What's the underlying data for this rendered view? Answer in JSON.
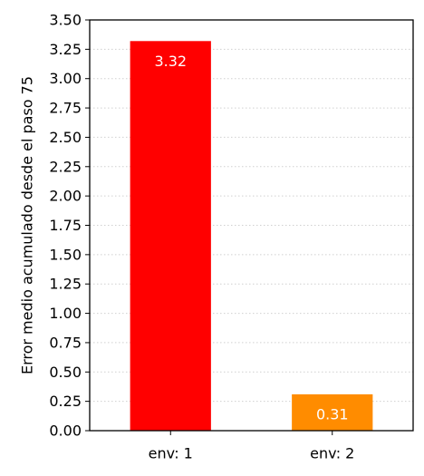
{
  "chart_data": {
    "type": "bar",
    "title": "",
    "xlabel": "",
    "ylabel": "Error medio acumulado desde el paso 75",
    "categories": [
      "env: 1",
      "env: 2"
    ],
    "values": [
      3.32,
      0.31
    ],
    "data_labels": [
      "3.32",
      "0.31"
    ],
    "colors": [
      "#ff0000",
      "#ff8c00"
    ],
    "ylim": [
      0,
      3.5
    ],
    "yticks": [
      "0.00",
      "0.25",
      "0.50",
      "0.75",
      "1.00",
      "1.25",
      "1.50",
      "1.75",
      "2.00",
      "2.25",
      "2.50",
      "2.75",
      "3.00",
      "3.25",
      "3.50"
    ],
    "grid": "y-dotted",
    "legend": "none"
  }
}
